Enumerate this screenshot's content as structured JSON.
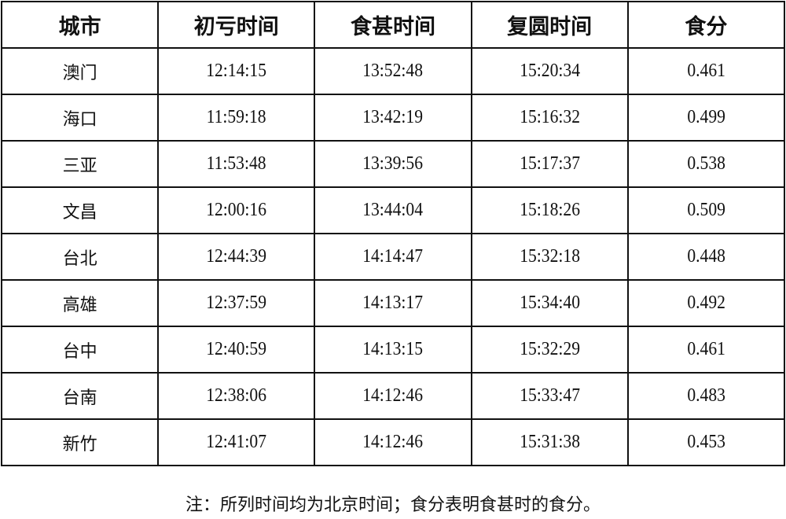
{
  "table": {
    "headers": [
      "城市",
      "初亏时间",
      "食甚时间",
      "复圆时间",
      "食分"
    ],
    "rows": [
      [
        "澳门",
        "12:14:15",
        "13:52:48",
        "15:20:34",
        "0.461"
      ],
      [
        "海口",
        "11:59:18",
        "13:42:19",
        "15:16:32",
        "0.499"
      ],
      [
        "三亚",
        "11:53:48",
        "13:39:56",
        "15:17:37",
        "0.538"
      ],
      [
        "文昌",
        "12:00:16",
        "13:44:04",
        "15:18:26",
        "0.509"
      ],
      [
        "台北",
        "12:44:39",
        "14:14:47",
        "15:32:18",
        "0.448"
      ],
      [
        "高雄",
        "12:37:59",
        "14:13:17",
        "15:34:40",
        "0.492"
      ],
      [
        "台中",
        "12:40:59",
        "14:13:15",
        "15:32:29",
        "0.461"
      ],
      [
        "台南",
        "12:38:06",
        "14:12:46",
        "15:33:47",
        "0.483"
      ],
      [
        "新竹",
        "12:41:07",
        "14:12:46",
        "15:31:38",
        "0.453"
      ]
    ]
  },
  "note": "注：所列时间均为北京时间；食分表明食甚时的食分。"
}
